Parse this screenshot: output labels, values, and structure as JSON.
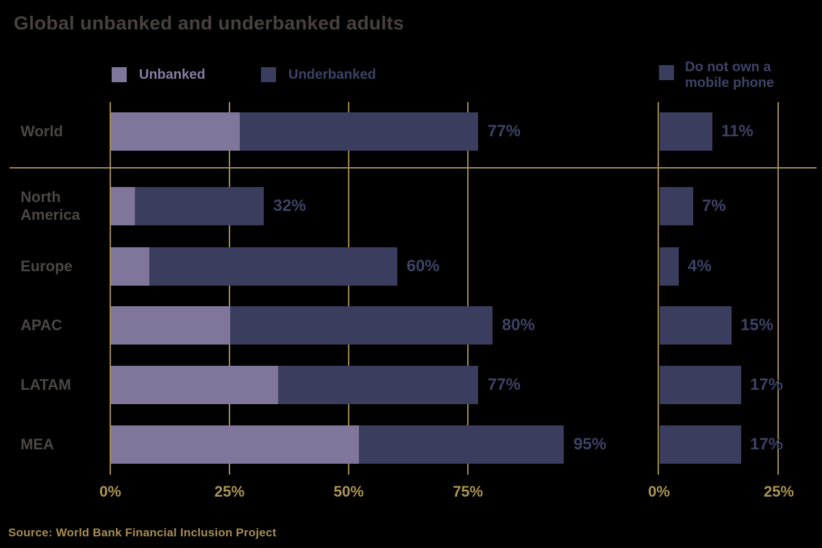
{
  "title": "Global unbanked and underbanked adults",
  "source": "Source: World Bank Financial Inclusion Project",
  "legend": {
    "unbanked": "Unbanked",
    "underbanked": "Underbanked",
    "mobile_line1": "Do not own a",
    "mobile_line2": "mobile phone"
  },
  "colors": {
    "background": "#000000",
    "unbanked": "#80769B",
    "underbanked": "#3A3D5E",
    "gold": "#A38D52",
    "gold_text": "#AC9553",
    "title": "#474240",
    "label": "#4B4744",
    "value": "#3E4266",
    "legend_unbanked_text": "#877CA3",
    "source": "#A68E52"
  },
  "chart_data": {
    "type": "bar",
    "orientation": "horizontal",
    "title": "Global unbanked and underbanked adults",
    "categories": [
      "World",
      "North America",
      "Europe",
      "APAC",
      "LATAM",
      "MEA"
    ],
    "series": [
      {
        "name": "Unbanked",
        "values": [
          27,
          5,
          8,
          25,
          35,
          52
        ]
      },
      {
        "name": "Underbanked",
        "values": [
          50,
          27,
          52,
          55,
          42,
          43
        ]
      }
    ],
    "totals": [
      77,
      32,
      60,
      80,
      77,
      95
    ],
    "total_labels": [
      "77%",
      "32%",
      "60%",
      "80%",
      "77%",
      "95%"
    ],
    "mobile": {
      "name": "Do not own a mobile phone",
      "values": [
        11,
        7,
        4,
        15,
        17,
        17
      ],
      "labels": [
        "11%",
        "7%",
        "4%",
        "15%",
        "17%",
        "17%"
      ]
    },
    "left_axis": {
      "ticks": [
        "0%",
        "25%",
        "50%",
        "75%"
      ],
      "range": [
        0,
        100
      ],
      "grid": true
    },
    "right_axis": {
      "ticks": [
        "0%",
        "25%"
      ],
      "range": [
        0,
        25
      ],
      "grid": true
    },
    "legend_position": "top",
    "separator_after": "World"
  }
}
